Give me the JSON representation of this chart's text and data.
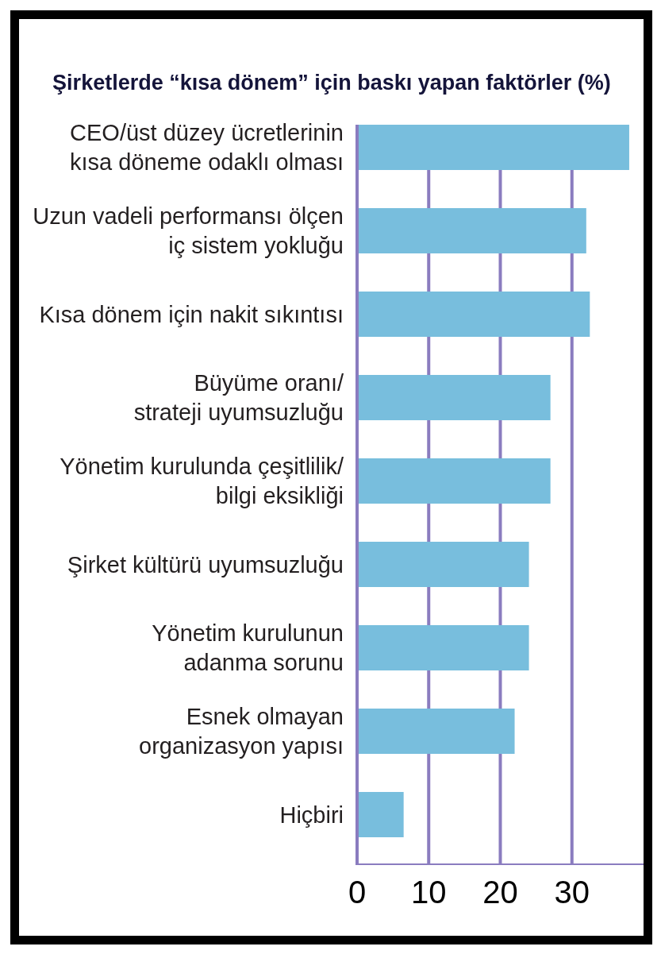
{
  "chart_data": {
    "type": "bar",
    "orientation": "horizontal",
    "title": "Şirketlerde “kısa dönem” için baskı yapan faktörler (%)",
    "categories": [
      "CEO/üst düzey ücretlerinin\nkısa döneme odaklı olması",
      "Uzun vadeli performansı ölçen\niç sistem yokluğu",
      "Kısa dönem için nakit sıkıntısı",
      "Büyüme oranı/\nstrateji uyumsuzluğu",
      "Yönetim kurulunda çeşitlilik/\nbilgi eksikliği",
      "Şirket kültürü uyumsuzluğu",
      "Yönetim kurulunun\nadanma sorunu",
      "Esnek olmayan\norganizasyon yapısı",
      "Hiçbiri"
    ],
    "values": [
      38,
      32,
      32.5,
      27,
      27,
      24,
      24,
      22,
      6.5
    ],
    "color": "#78bedd",
    "xlim": [
      0,
      40
    ],
    "xticks": [
      0,
      10,
      20,
      30
    ],
    "grid": "x"
  }
}
